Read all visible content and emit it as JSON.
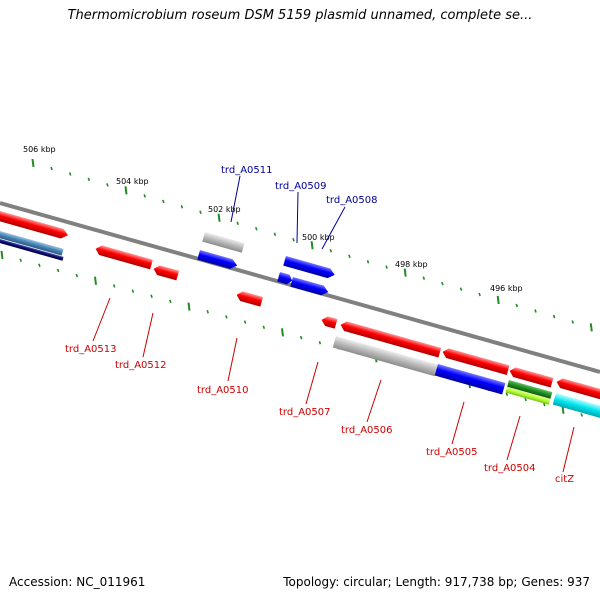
{
  "title": "Thermomicrobium roseum DSM 5159 plasmid unnamed, complete se...",
  "footer": {
    "accession_label": "Accession: NC_011961",
    "topology_label": "Topology: circular;",
    "length_label": "Length: 917,738 bp;",
    "genes_label": "Genes: 937"
  },
  "colors": {
    "backbone": "#808080",
    "tick": "#228b22",
    "forward_gene": "#ff0000",
    "reverse_gene": "#0000ff",
    "gray_gene": "#bdbdbd",
    "green_gene": "#1f8a1f",
    "lime_gene": "#adff2f",
    "cyan_gene": "#00e5ee",
    "steel_gene": "#4682b4",
    "navy_gene": "#0a0a6e",
    "label_forward": "#cc0000",
    "label_reverse": "#000099"
  },
  "scale_labels": [
    "506 kbp",
    "504 kbp",
    "502 kbp",
    "500 kbp",
    "498 kbp",
    "496 kbp"
  ],
  "gene_labels": [
    {
      "id": "trd_A0511",
      "text": "trd_A0511",
      "strand": "reverse"
    },
    {
      "id": "trd_A0509",
      "text": "trd_A0509",
      "strand": "reverse"
    },
    {
      "id": "trd_A0508",
      "text": "trd_A0508",
      "strand": "reverse"
    },
    {
      "id": "trd_A0513",
      "text": "trd_A0513",
      "strand": "forward"
    },
    {
      "id": "trd_A0512",
      "text": "trd_A0512",
      "strand": "forward"
    },
    {
      "id": "trd_A0510",
      "text": "trd_A0510",
      "strand": "forward"
    },
    {
      "id": "trd_A0507",
      "text": "trd_A0507",
      "strand": "forward"
    },
    {
      "id": "trd_A0506",
      "text": "trd_A0506",
      "strand": "forward"
    },
    {
      "id": "trd_A0505",
      "text": "trd_A0505",
      "strand": "forward"
    },
    {
      "id": "trd_A0504",
      "text": "trd_A0504",
      "strand": "forward"
    },
    {
      "id": "citZ",
      "text": "citZ",
      "strand": "forward"
    }
  ]
}
